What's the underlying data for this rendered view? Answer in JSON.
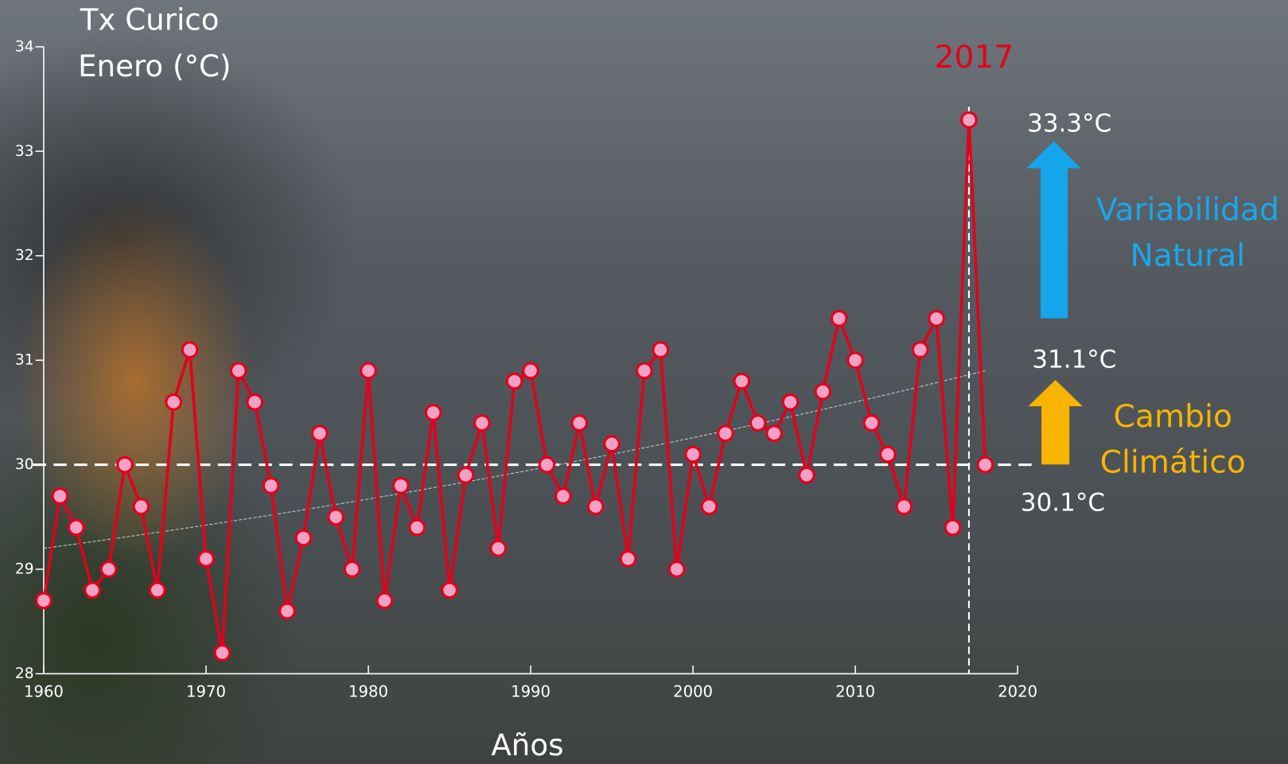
{
  "chart_data": {
    "type": "line",
    "title": [
      "Tx Curico",
      "Enero (°C)"
    ],
    "x_label": "Años",
    "x": [
      1960,
      1961,
      1962,
      1963,
      1964,
      1965,
      1966,
      1967,
      1968,
      1969,
      1970,
      1971,
      1972,
      1973,
      1974,
      1975,
      1976,
      1977,
      1978,
      1979,
      1980,
      1981,
      1982,
      1983,
      1984,
      1985,
      1986,
      1987,
      1988,
      1989,
      1990,
      1991,
      1992,
      1993,
      1994,
      1995,
      1996,
      1997,
      1998,
      1999,
      2000,
      2001,
      2002,
      2003,
      2004,
      2005,
      2006,
      2007,
      2008,
      2009,
      2010,
      2011,
      2012,
      2013,
      2014,
      2015,
      2016,
      2017,
      2018
    ],
    "series": [
      {
        "color": "#e3001b",
        "marker_color": "#f2a2c6",
        "values": [
          28.7,
          29.7,
          29.4,
          28.8,
          29.0,
          30.0,
          29.6,
          28.8,
          30.6,
          31.1,
          29.1,
          28.2,
          30.9,
          30.6,
          29.8,
          28.6,
          29.3,
          30.3,
          29.5,
          29.0,
          30.9,
          28.7,
          29.8,
          29.4,
          30.5,
          28.8,
          29.9,
          30.4,
          29.2,
          30.8,
          30.9,
          30.0,
          29.7,
          30.4,
          29.6,
          30.2,
          29.1,
          30.9,
          31.1,
          29.0,
          30.1,
          29.6,
          30.3,
          30.8,
          30.4,
          30.3,
          30.6,
          29.9,
          30.7,
          31.4,
          31.0,
          30.4,
          30.1,
          29.6,
          31.1,
          31.4,
          29.4,
          33.3,
          30.0
        ]
      }
    ],
    "trend": {
      "x": [
        1960,
        1990,
        2018
      ],
      "values": [
        29.2,
        29.95,
        30.9
      ],
      "color": "#cccccc"
    },
    "baseline": 30.0,
    "highlight": {
      "x": 2017,
      "label": "2017",
      "color": "#e3001b"
    },
    "annotations": [
      {
        "lines": [
          "33.3°C"
        ],
        "color": "#ffffff"
      },
      {
        "lines": [
          "31.1°C"
        ],
        "color": "#ffffff"
      },
      {
        "lines": [
          "30.1°C"
        ],
        "color": "#ffffff"
      },
      {
        "lines": [
          "Variabilidad",
          "Natural"
        ],
        "color": "#1aa7e8"
      },
      {
        "lines": [
          "Cambio",
          "Climático"
        ],
        "color": "#f7b500"
      }
    ],
    "xlim": [
      1960,
      2020
    ],
    "xticks": [
      1960,
      1970,
      1980,
      1990,
      2000,
      2010,
      2020
    ],
    "ylim": [
      28,
      34
    ],
    "yticks": [
      28,
      29,
      30,
      31,
      32,
      33,
      34
    ]
  }
}
